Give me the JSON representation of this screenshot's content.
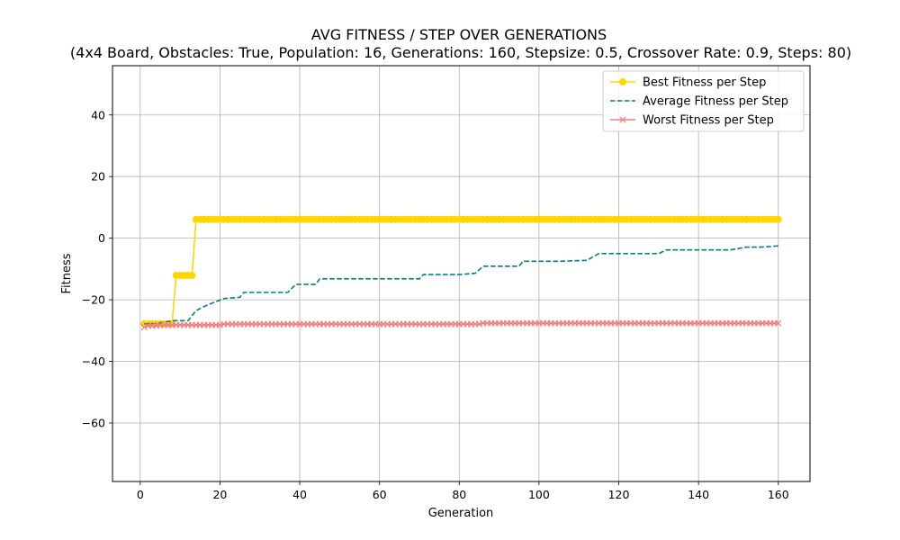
{
  "chart_data": {
    "type": "line",
    "title": "AVG FITNESS / STEP OVER GENERATIONS",
    "subtitle": "(4x4 Board, Obstacles: True, Population: 16, Generations: 160, Stepsize: 0.5, Crossover Rate: 0.9, Steps: 80)",
    "xlabel": "Generation",
    "ylabel": "Fitness",
    "xlim": [
      -6.95,
      167.95
    ],
    "ylim": [
      -79,
      56
    ],
    "xticks": [
      0,
      20,
      40,
      60,
      80,
      100,
      120,
      140,
      160
    ],
    "yticks": [
      40,
      20,
      0,
      -20,
      -40,
      -60
    ],
    "grid": true,
    "legend_position": "top-right",
    "series": [
      {
        "name": "Best Fitness per Step",
        "color": "#FFD700",
        "style": "solid",
        "marker": "circle",
        "segments": [
          [
            1,
            8,
            -27.8
          ],
          [
            9,
            13,
            -12.1
          ],
          [
            14,
            160,
            6.1
          ]
        ]
      },
      {
        "name": "Average Fitness per Step",
        "color": "#008080",
        "style": "dashed",
        "marker": "none",
        "points": [
          [
            1,
            -27.8
          ],
          [
            4,
            -27.7
          ],
          [
            8,
            -26.8
          ],
          [
            12,
            -26.8
          ],
          [
            14,
            -23.5
          ],
          [
            16,
            -22.2
          ],
          [
            18,
            -21.1
          ],
          [
            21,
            -19.6
          ],
          [
            25,
            -19.2
          ],
          [
            26,
            -17.6
          ],
          [
            37,
            -17.6
          ],
          [
            39,
            -15
          ],
          [
            44,
            -15
          ],
          [
            45,
            -13.2
          ],
          [
            70,
            -13.2
          ],
          [
            71,
            -11.8
          ],
          [
            80,
            -11.8
          ],
          [
            84,
            -11.4
          ],
          [
            86,
            -9.1
          ],
          [
            95,
            -9.1
          ],
          [
            96,
            -7.5
          ],
          [
            105,
            -7.5
          ],
          [
            112,
            -7.2
          ],
          [
            115,
            -5
          ],
          [
            130,
            -5
          ],
          [
            132,
            -3.8
          ],
          [
            148,
            -3.8
          ],
          [
            152,
            -2.9
          ],
          [
            156,
            -2.9
          ],
          [
            160,
            -2.5
          ]
        ]
      },
      {
        "name": "Worst Fitness per Step",
        "color": "#F08080",
        "style": "solid",
        "marker": "x",
        "segments": [
          [
            1,
            1,
            -28.9
          ],
          [
            2,
            4,
            -28.4
          ],
          [
            5,
            20,
            -28.2
          ],
          [
            21,
            85,
            -27.9
          ],
          [
            86,
            160,
            -27.6
          ]
        ]
      }
    ]
  }
}
